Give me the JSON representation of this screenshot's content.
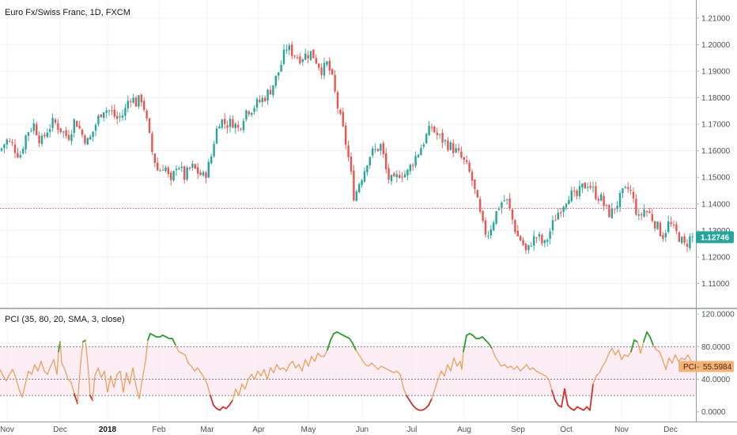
{
  "chart_data": [
    {
      "type": "candlestick",
      "title": "Euro Fx/Swiss Franc, 1D, FXCM",
      "y_ticks": [
        "1.21000",
        "1.20000",
        "1.19000",
        "1.18000",
        "1.17000",
        "1.16000",
        "1.15000",
        "1.14000",
        "1.13000",
        "1.12000",
        "1.11000"
      ],
      "y_tick_values": [
        1.21,
        1.2,
        1.19,
        1.18,
        1.17,
        1.16,
        1.15,
        1.14,
        1.13,
        1.12,
        1.11
      ],
      "ylim": [
        1.1012,
        1.2168
      ],
      "last_price_label": "1.12746",
      "last_price": 1.12746,
      "reference_level": 1.1383,
      "up_color": "#26a69a",
      "down_color": "#ef5350",
      "close_points": [
        [
          0,
          1.16
        ],
        [
          8,
          1.164
        ],
        [
          16,
          1.162
        ],
        [
          25,
          1.158
        ],
        [
          34,
          1.167
        ],
        [
          43,
          1.17
        ],
        [
          52,
          1.163
        ],
        [
          60,
          1.168
        ],
        [
          68,
          1.171
        ],
        [
          77,
          1.168
        ],
        [
          86,
          1.165
        ],
        [
          95,
          1.172
        ],
        [
          104,
          1.166
        ],
        [
          112,
          1.163
        ],
        [
          121,
          1.17
        ],
        [
          130,
          1.176
        ],
        [
          139,
          1.175
        ],
        [
          148,
          1.172
        ],
        [
          157,
          1.174
        ],
        [
          164,
          1.181
        ],
        [
          172,
          1.178
        ],
        [
          180,
          1.18
        ],
        [
          186,
          1.17
        ],
        [
          192,
          1.16
        ],
        [
          200,
          1.152
        ],
        [
          208,
          1.155
        ],
        [
          216,
          1.147
        ],
        [
          224,
          1.156
        ],
        [
          233,
          1.15
        ],
        [
          242,
          1.154
        ],
        [
          250,
          1.152
        ],
        [
          258,
          1.15
        ],
        [
          266,
          1.156
        ],
        [
          272,
          1.166
        ],
        [
          278,
          1.172
        ],
        [
          286,
          1.17
        ],
        [
          294,
          1.171
        ],
        [
          302,
          1.168
        ],
        [
          310,
          1.175
        ],
        [
          318,
          1.176
        ],
        [
          326,
          1.178
        ],
        [
          334,
          1.18
        ],
        [
          342,
          1.183
        ],
        [
          350,
          1.188
        ],
        [
          356,
          1.193
        ],
        [
          362,
          1.199
        ],
        [
          370,
          1.197
        ],
        [
          378,
          1.195
        ],
        [
          386,
          1.196
        ],
        [
          394,
          1.197
        ],
        [
          400,
          1.194
        ],
        [
          408,
          1.19
        ],
        [
          414,
          1.193
        ],
        [
          420,
          1.187
        ],
        [
          428,
          1.175
        ],
        [
          436,
          1.165
        ],
        [
          442,
          1.155
        ],
        [
          448,
          1.142
        ],
        [
          454,
          1.148
        ],
        [
          460,
          1.152
        ],
        [
          466,
          1.158
        ],
        [
          474,
          1.16
        ],
        [
          482,
          1.162
        ],
        [
          490,
          1.15
        ],
        [
          498,
          1.148
        ],
        [
          506,
          1.152
        ],
        [
          514,
          1.151
        ],
        [
          522,
          1.156
        ],
        [
          530,
          1.16
        ],
        [
          538,
          1.165
        ],
        [
          546,
          1.169
        ],
        [
          552,
          1.166
        ],
        [
          560,
          1.164
        ],
        [
          568,
          1.162
        ],
        [
          576,
          1.16
        ],
        [
          584,
          1.157
        ],
        [
          590,
          1.154
        ],
        [
          596,
          1.15
        ],
        [
          604,
          1.14
        ],
        [
          610,
          1.132
        ],
        [
          616,
          1.128
        ],
        [
          624,
          1.134
        ],
        [
          632,
          1.14
        ],
        [
          640,
          1.142
        ],
        [
          648,
          1.134
        ],
        [
          654,
          1.128
        ],
        [
          660,
          1.126
        ],
        [
          666,
          1.121
        ],
        [
          672,
          1.126
        ],
        [
          680,
          1.128
        ],
        [
          688,
          1.124
        ],
        [
          696,
          1.13
        ],
        [
          704,
          1.136
        ],
        [
          712,
          1.14
        ],
        [
          720,
          1.144
        ],
        [
          728,
          1.142
        ],
        [
          736,
          1.146
        ],
        [
          744,
          1.148
        ],
        [
          752,
          1.144
        ],
        [
          760,
          1.142
        ],
        [
          766,
          1.138
        ],
        [
          772,
          1.136
        ],
        [
          780,
          1.14
        ],
        [
          788,
          1.144
        ],
        [
          796,
          1.146
        ],
        [
          802,
          1.14
        ],
        [
          808,
          1.134
        ],
        [
          814,
          1.138
        ],
        [
          822,
          1.136
        ],
        [
          830,
          1.132
        ],
        [
          838,
          1.128
        ],
        [
          846,
          1.133
        ],
        [
          852,
          1.13
        ],
        [
          858,
          1.128
        ],
        [
          866,
          1.124
        ],
        [
          872,
          1.127
        ],
        [
          878,
          1.12746
        ]
      ]
    },
    {
      "type": "line",
      "title": "PCI (35, 80, 20, SMA, 3, close)",
      "y_ticks": [
        "120.0000",
        "80.0000",
        "40.0000",
        "0.0000"
      ],
      "y_tick_values": [
        120,
        80,
        40,
        0
      ],
      "ylim": [
        -12,
        125
      ],
      "upper_level": 80,
      "middle_level": 40,
      "lower_level": 20,
      "last_value_label": "PCI",
      "last_value": "55.5984",
      "last_value_number": 55.5984,
      "line_color": "#ec9a52",
      "high_color": "#2e9b2e",
      "low_color": "#d32f2f",
      "band_color": "#fbe7f0",
      "values": [
        [
          0,
          52
        ],
        [
          4,
          44
        ],
        [
          8,
          38
        ],
        [
          12,
          46
        ],
        [
          16,
          52
        ],
        [
          20,
          42
        ],
        [
          24,
          28
        ],
        [
          28,
          18
        ],
        [
          32,
          34
        ],
        [
          36,
          50
        ],
        [
          40,
          46
        ],
        [
          44,
          58
        ],
        [
          48,
          50
        ],
        [
          52,
          62
        ],
        [
          56,
          50
        ],
        [
          60,
          46
        ],
        [
          64,
          56
        ],
        [
          68,
          64
        ],
        [
          72,
          46
        ],
        [
          74,
          74
        ],
        [
          76,
          86
        ],
        [
          78,
          60
        ],
        [
          82,
          52
        ],
        [
          86,
          40
        ],
        [
          90,
          36
        ],
        [
          94,
          22
        ],
        [
          98,
          10
        ],
        [
          102,
          60
        ],
        [
          105,
          86
        ],
        [
          108,
          88
        ],
        [
          111,
          60
        ],
        [
          114,
          20
        ],
        [
          117,
          14
        ],
        [
          120,
          44
        ],
        [
          124,
          54
        ],
        [
          128,
          42
        ],
        [
          132,
          50
        ],
        [
          136,
          24
        ],
        [
          140,
          44
        ],
        [
          144,
          30
        ],
        [
          148,
          46
        ],
        [
          152,
          50
        ],
        [
          156,
          24
        ],
        [
          160,
          48
        ],
        [
          164,
          34
        ],
        [
          168,
          54
        ],
        [
          172,
          32
        ],
        [
          176,
          16
        ],
        [
          180,
          40
        ],
        [
          184,
          62
        ],
        [
          187,
          88
        ],
        [
          190,
          96
        ],
        [
          194,
          94
        ],
        [
          198,
          92
        ],
        [
          202,
          92
        ],
        [
          206,
          94
        ],
        [
          210,
          92
        ],
        [
          214,
          90
        ],
        [
          218,
          90
        ],
        [
          222,
          82
        ],
        [
          226,
          74
        ],
        [
          230,
          72
        ],
        [
          234,
          70
        ],
        [
          238,
          60
        ],
        [
          242,
          56
        ],
        [
          246,
          50
        ],
        [
          250,
          54
        ],
        [
          254,
          48
        ],
        [
          258,
          42
        ],
        [
          262,
          34
        ],
        [
          266,
          20
        ],
        [
          270,
          8
        ],
        [
          274,
          4
        ],
        [
          278,
          2
        ],
        [
          282,
          6
        ],
        [
          286,
          4
        ],
        [
          290,
          8
        ],
        [
          294,
          14
        ],
        [
          298,
          28
        ],
        [
          302,
          20
        ],
        [
          306,
          34
        ],
        [
          310,
          28
        ],
        [
          314,
          40
        ],
        [
          318,
          46
        ],
        [
          322,
          40
        ],
        [
          326,
          50
        ],
        [
          330,
          44
        ],
        [
          334,
          52
        ],
        [
          338,
          40
        ],
        [
          342,
          54
        ],
        [
          346,
          48
        ],
        [
          350,
          58
        ],
        [
          354,
          52
        ],
        [
          358,
          54
        ],
        [
          362,
          50
        ],
        [
          366,
          58
        ],
        [
          370,
          62
        ],
        [
          374,
          54
        ],
        [
          378,
          58
        ],
        [
          382,
          50
        ],
        [
          386,
          64
        ],
        [
          390,
          56
        ],
        [
          394,
          68
        ],
        [
          398,
          62
        ],
        [
          402,
          72
        ],
        [
          406,
          68
        ],
        [
          410,
          68
        ],
        [
          414,
          76
        ],
        [
          418,
          88
        ],
        [
          422,
          96
        ],
        [
          426,
          98
        ],
        [
          430,
          96
        ],
        [
          434,
          94
        ],
        [
          438,
          92
        ],
        [
          442,
          90
        ],
        [
          446,
          84
        ],
        [
          450,
          76
        ],
        [
          454,
          70
        ],
        [
          458,
          64
        ],
        [
          462,
          58
        ],
        [
          466,
          56
        ],
        [
          470,
          60
        ],
        [
          474,
          56
        ],
        [
          478,
          52
        ],
        [
          482,
          56
        ],
        [
          486,
          54
        ],
        [
          490,
          52
        ],
        [
          494,
          50
        ],
        [
          498,
          48
        ],
        [
          502,
          50
        ],
        [
          506,
          46
        ],
        [
          510,
          30
        ],
        [
          514,
          20
        ],
        [
          518,
          14
        ],
        [
          522,
          8
        ],
        [
          526,
          4
        ],
        [
          530,
          2
        ],
        [
          534,
          2
        ],
        [
          538,
          4
        ],
        [
          542,
          8
        ],
        [
          546,
          16
        ],
        [
          550,
          28
        ],
        [
          554,
          40
        ],
        [
          558,
          50
        ],
        [
          562,
          44
        ],
        [
          566,
          58
        ],
        [
          570,
          50
        ],
        [
          574,
          66
        ],
        [
          578,
          56
        ],
        [
          582,
          62
        ],
        [
          584,
          52
        ],
        [
          586,
          74
        ],
        [
          590,
          94
        ],
        [
          594,
          96
        ],
        [
          598,
          94
        ],
        [
          602,
          90
        ],
        [
          606,
          90
        ],
        [
          610,
          92
        ],
        [
          614,
          88
        ],
        [
          618,
          84
        ],
        [
          622,
          78
        ],
        [
          626,
          68
        ],
        [
          630,
          62
        ],
        [
          634,
          56
        ],
        [
          638,
          58
        ],
        [
          642,
          54
        ],
        [
          646,
          56
        ],
        [
          650,
          52
        ],
        [
          654,
          56
        ],
        [
          658,
          50
        ],
        [
          662,
          54
        ],
        [
          666,
          58
        ],
        [
          670,
          52
        ],
        [
          674,
          54
        ],
        [
          678,
          50
        ],
        [
          682,
          48
        ],
        [
          686,
          46
        ],
        [
          690,
          44
        ],
        [
          694,
          40
        ],
        [
          698,
          26
        ],
        [
          702,
          14
        ],
        [
          706,
          8
        ],
        [
          710,
          6
        ],
        [
          714,
          28
        ],
        [
          718,
          8
        ],
        [
          722,
          4
        ],
        [
          726,
          2
        ],
        [
          730,
          6
        ],
        [
          734,
          4
        ],
        [
          738,
          2
        ],
        [
          742,
          6
        ],
        [
          746,
          2
        ],
        [
          750,
          34
        ],
        [
          754,
          44
        ],
        [
          758,
          48
        ],
        [
          762,
          56
        ],
        [
          766,
          62
        ],
        [
          770,
          72
        ],
        [
          774,
          78
        ],
        [
          778,
          70
        ],
        [
          782,
          76
        ],
        [
          786,
          64
        ],
        [
          790,
          70
        ],
        [
          794,
          68
        ],
        [
          798,
          74
        ],
        [
          802,
          88
        ],
        [
          806,
          86
        ],
        [
          810,
          72
        ],
        [
          814,
          86
        ],
        [
          818,
          98
        ],
        [
          822,
          92
        ],
        [
          826,
          82
        ],
        [
          830,
          76
        ],
        [
          834,
          74
        ],
        [
          838,
          64
        ],
        [
          842,
          52
        ],
        [
          846,
          66
        ],
        [
          850,
          60
        ],
        [
          854,
          70
        ],
        [
          858,
          62
        ],
        [
          862,
          66
        ],
        [
          866,
          64
        ],
        [
          870,
          70
        ],
        [
          874,
          62
        ],
        [
          878,
          56
        ]
      ]
    }
  ],
  "x_axis": {
    "labels": [
      "Nov",
      "Dec",
      "2018",
      "Feb",
      "Mar",
      "Apr",
      "May",
      "Jun",
      "Jul",
      "Aug",
      "Sep",
      "Oct",
      "Nov",
      "Dec"
    ],
    "bold": [
      false,
      false,
      true,
      false,
      false,
      false,
      false,
      false,
      false,
      false,
      false,
      false,
      false,
      false
    ]
  }
}
